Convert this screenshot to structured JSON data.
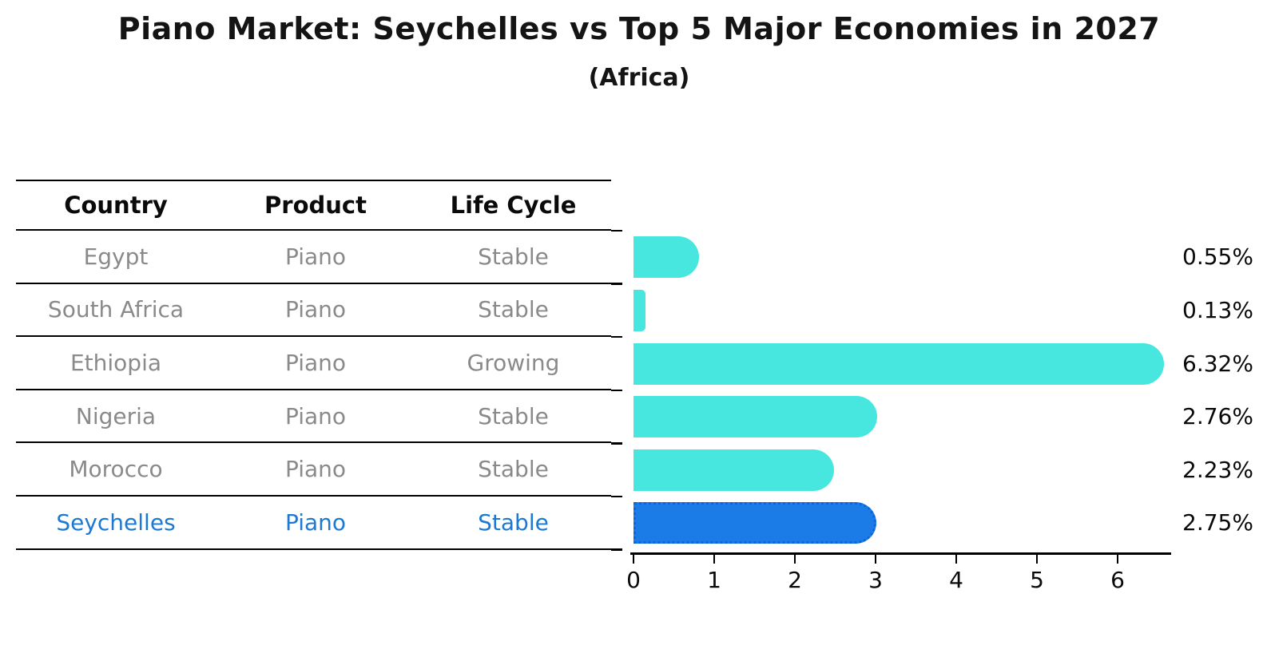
{
  "title": "Piano Market: Seychelles vs Top 5 Major Economies in 2027",
  "subtitle": "(Africa)",
  "table": {
    "headers": [
      "Country",
      "Product",
      "Life Cycle"
    ],
    "rows": [
      {
        "country": "Egypt",
        "product": "Piano",
        "life_cycle": "Stable",
        "highlight": false
      },
      {
        "country": "South Africa",
        "product": "Piano",
        "life_cycle": "Stable",
        "highlight": false
      },
      {
        "country": "Ethiopia",
        "product": "Piano",
        "life_cycle": "Growing",
        "highlight": false
      },
      {
        "country": "Nigeria",
        "product": "Piano",
        "life_cycle": "Stable",
        "highlight": false
      },
      {
        "country": "Morocco",
        "product": "Piano",
        "life_cycle": "Stable",
        "highlight": false
      },
      {
        "country": "Seychelles",
        "product": "Piano",
        "life_cycle": "Stable",
        "highlight": true
      }
    ]
  },
  "chart_data": {
    "type": "bar",
    "orientation": "horizontal",
    "title": "Piano Market: Seychelles vs Top 5 Major Economies in 2027",
    "subtitle": "(Africa)",
    "categories": [
      "Egypt",
      "South Africa",
      "Ethiopia",
      "Nigeria",
      "Morocco",
      "Seychelles"
    ],
    "values": [
      0.55,
      0.13,
      6.32,
      2.76,
      2.23,
      2.75
    ],
    "value_labels": [
      "0.55%",
      "0.13%",
      "6.32%",
      "2.76%",
      "2.23%",
      "2.75%"
    ],
    "x_ticks": [
      "0",
      "1",
      "2",
      "3",
      "4",
      "5",
      "6"
    ],
    "xlim": [
      0,
      6.66
    ],
    "xlabel": "",
    "ylabel": "",
    "grid": false,
    "legend": "none",
    "highlight_index": 5,
    "bar_style": "rounded-end",
    "highlight_edge_style": "dotted"
  },
  "colors": {
    "bar": "#47e6df",
    "highlight_bar": "#1b7ce8",
    "highlight_border": "#0d64dd",
    "row_text": "#8a8a8a",
    "highlight_text": "#1e79d3",
    "axis": "#000000",
    "title_text": "#141414"
  }
}
